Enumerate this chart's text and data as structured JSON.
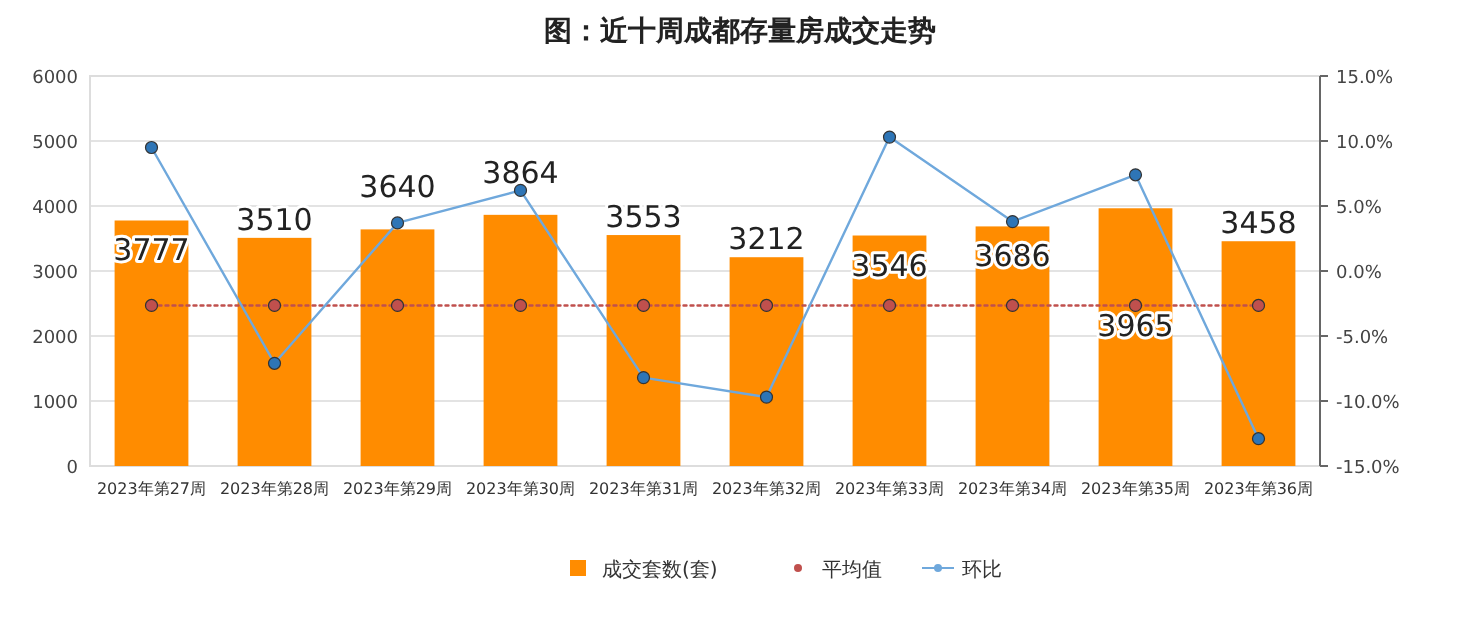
{
  "chart_data": {
    "type": "bar",
    "title": "图：近十周成都存量房成交走势",
    "categories": [
      "2023年第27周",
      "2023年第28周",
      "2023年第29周",
      "2023年第30周",
      "2023年第31周",
      "2023年第32周",
      "2023年第33周",
      "2023年第34周",
      "2023年第35周",
      "2023年第36周"
    ],
    "series": [
      {
        "name": "成交套数(套)",
        "color": "#ff8c00",
        "values": [
          3777,
          3510,
          3640,
          3864,
          3553,
          3212,
          3546,
          3686,
          3965,
          3458
        ],
        "value_labels": [
          "3777",
          "3510",
          "3640",
          "3864",
          "3553",
          "3212",
          "3546",
          "3686",
          "3965",
          "3458"
        ]
      },
      {
        "name": "平均值",
        "type": "line",
        "color": "#c0504d",
        "line_style": "dotted",
        "marker": "circle",
        "values": [
          2470,
          2470,
          2470,
          2470,
          2470,
          2470,
          2470,
          2470,
          2470,
          2470
        ]
      },
      {
        "name": "环比",
        "type": "line",
        "color": "#6fa8dc",
        "line_style": "solid",
        "marker": "circle",
        "axis": "y2",
        "values": [
          9.5,
          -7.1,
          3.7,
          6.2,
          -8.2,
          -9.7,
          10.3,
          3.8,
          7.4,
          -12.9
        ]
      }
    ],
    "ylim": [
      0,
      6000
    ],
    "yticks": [
      0,
      1000,
      2000,
      3000,
      4000,
      5000,
      6000
    ],
    "y2lim": [
      -15,
      15
    ],
    "y2ticks": [
      {
        "value": -15,
        "label": "-15.0%"
      },
      {
        "value": -10,
        "label": "-10.0%"
      },
      {
        "value": -5,
        "label": "-5.0%"
      },
      {
        "value": 0,
        "label": "0.0%"
      },
      {
        "value": 5,
        "label": "5.0%"
      },
      {
        "value": 10,
        "label": "10.0%"
      },
      {
        "value": 15,
        "label": "15.0%"
      }
    ],
    "grid": "y",
    "legend": "bottom"
  }
}
